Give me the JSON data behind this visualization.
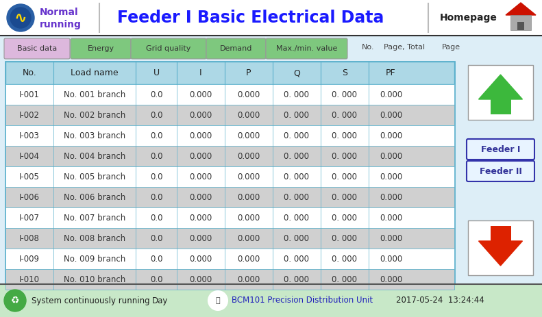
{
  "title": "Feeder I Basic Electrical Data",
  "nav_tabs": [
    "Basic data",
    "Energy",
    "Grid quality",
    "Demand",
    "Max./min. value"
  ],
  "nav_tab_colors": [
    "#ddb8dd",
    "#7ec87e",
    "#7ec87e",
    "#7ec87e",
    "#7ec87e"
  ],
  "page_info_parts": [
    "No.",
    "Page, Total",
    "Page"
  ],
  "col_headers": [
    "No.",
    "Load name",
    "U",
    "I",
    "P",
    "Q",
    "S",
    "PF"
  ],
  "table_header_bg": "#add8e6",
  "row_colors": [
    "#ffffff",
    "#d0d0d0"
  ],
  "rows": [
    [
      "I-001",
      "No. 001 branch",
      "0.0",
      "0.000",
      "0.000",
      "0. 000",
      "0. 000",
      "0.000"
    ],
    [
      "I-002",
      "No. 002 branch",
      "0.0",
      "0.000",
      "0.000",
      "0. 000",
      "0. 000",
      "0.000"
    ],
    [
      "I-003",
      "No. 003 branch",
      "0.0",
      "0.000",
      "0.000",
      "0. 000",
      "0. 000",
      "0.000"
    ],
    [
      "I-004",
      "No. 004 branch",
      "0.0",
      "0.000",
      "0.000",
      "0. 000",
      "0. 000",
      "0.000"
    ],
    [
      "I-005",
      "No. 005 branch",
      "0.0",
      "0.000",
      "0.000",
      "0. 000",
      "0. 000",
      "0.000"
    ],
    [
      "I-006",
      "No. 006 branch",
      "0.0",
      "0.000",
      "0.000",
      "0. 000",
      "0. 000",
      "0.000"
    ],
    [
      "I-007",
      "No. 007 branch",
      "0.0",
      "0.000",
      "0.000",
      "0. 000",
      "0. 000",
      "0.000"
    ],
    [
      "I-008",
      "No. 008 branch",
      "0.0",
      "0.000",
      "0.000",
      "0. 000",
      "0. 000",
      "0.000"
    ],
    [
      "I-009",
      "No. 009 branch",
      "0.0",
      "0.000",
      "0.000",
      "0. 000",
      "0. 000",
      "0.000"
    ],
    [
      "I-010",
      "No. 010 branch",
      "0.0",
      "0.000",
      "0.000",
      "0. 000",
      "0. 000",
      "0.000"
    ]
  ],
  "footer_text": "System continuously running",
  "footer_day": "Day",
  "footer_device": "BCM101 Precision Distribution Unit",
  "footer_datetime": "2017-05-24  13:24:44",
  "feeder_btns": [
    "Feeder I",
    "Feeder II"
  ],
  "arrow_up_color": "#3cb83c",
  "arrow_down_color": "#dd2200",
  "border_color": "#5ab0cc",
  "title_color": "#1a1aff",
  "normal_running_color": "#6633cc",
  "bg_color": "#ddeef7",
  "header_bg": "#ffffff",
  "footer_bg": "#c8e8c8",
  "tab_area_bg": "#ddeef7"
}
